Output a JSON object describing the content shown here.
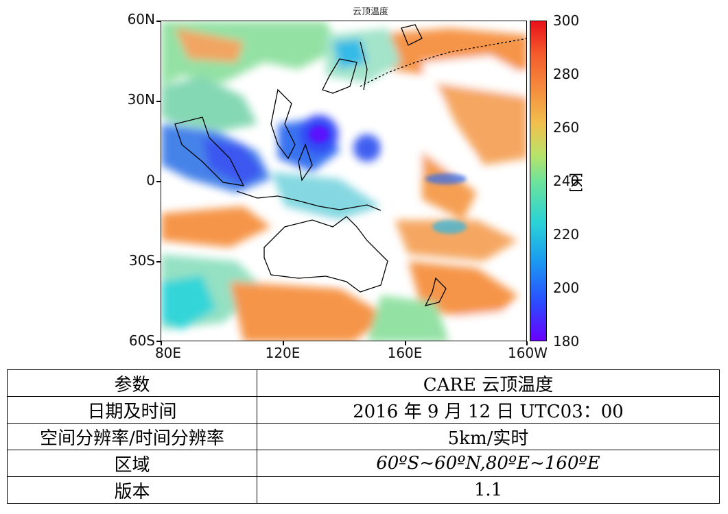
{
  "figure": {
    "title": "云顶温度",
    "y_ticks": [
      "60N",
      "30N",
      "0",
      "30S",
      "60S"
    ],
    "x_ticks": [
      "80E",
      "120E",
      "160E",
      "160W"
    ],
    "colorbar": {
      "ticks": [
        "300",
        "280",
        "260",
        "240",
        "220",
        "200",
        "180"
      ],
      "unit": "[K]",
      "colors": [
        "#6a00ff",
        "#2a4cff",
        "#1a9bf0",
        "#2ad3d6",
        "#6fe39a",
        "#b8e36a",
        "#f2c04d",
        "#f59040",
        "#f45a2a",
        "#e8101a"
      ]
    }
  },
  "table": {
    "rows": [
      {
        "label": "参数",
        "value": "CARE  云顶温度"
      },
      {
        "label": "日期及时间",
        "value": "2016 年 9 月 12 日 UTC03：00"
      },
      {
        "label": "空间分辨率/时间分辨率",
        "value": "5km/实时"
      },
      {
        "label": "区域",
        "value": "60ºS~60ºN,80ºE~160ºE"
      },
      {
        "label": "版本",
        "value": "1.1"
      }
    ]
  }
}
